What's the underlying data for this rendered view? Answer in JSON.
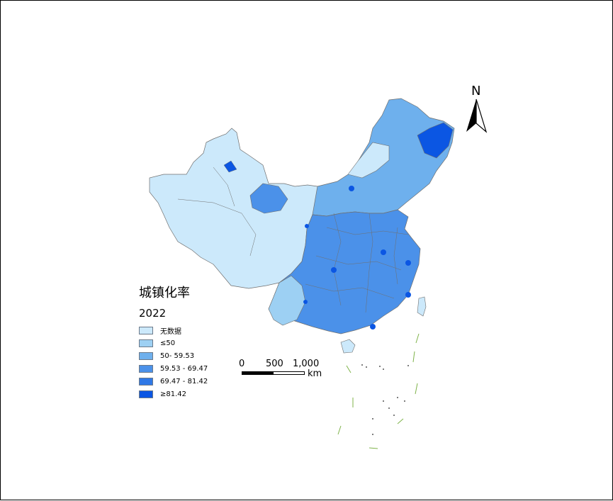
{
  "legend": {
    "title": "城镇化率",
    "year": "2022",
    "items": [
      {
        "label": "无数据",
        "color": "#cce9fb"
      },
      {
        "label": "≤50",
        "color": "#9dd0f3"
      },
      {
        "label": "50- 59.53",
        "color": "#6eb0ed"
      },
      {
        "label": "59.53 - 69.47",
        "color": "#4b91e9"
      },
      {
        "label": "69.47 - 81.42",
        "color": "#2f78e6"
      },
      {
        "label": "≥81.42",
        "color": "#0b56e3"
      }
    ]
  },
  "scale_bar": {
    "ticks": [
      "0",
      "500",
      "1,000"
    ],
    "unit": "km"
  },
  "north_arrow": {
    "label": "N"
  },
  "colors": {
    "border": "#6f6f6f",
    "island_outline": "#7fb34a"
  }
}
